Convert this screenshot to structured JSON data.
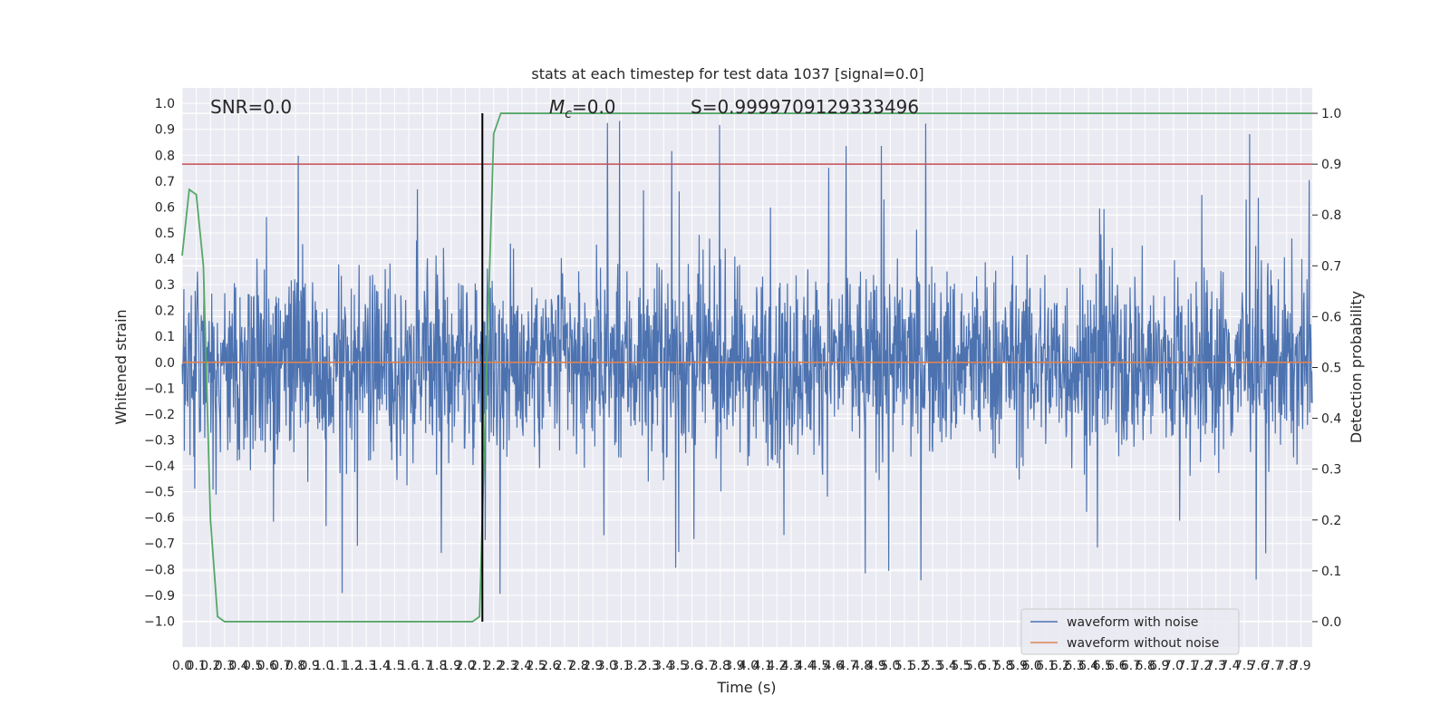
{
  "chart_data": {
    "type": "line",
    "title": "stats at each timestep for test data 1037 [signal=0.0]",
    "xlabel": "Time (s)",
    "ylabel_left": "Whitened strain",
    "ylabel_right": "Detection probability",
    "xlim": [
      0.0,
      7.98
    ],
    "ylim_left": [
      -1.1,
      1.06
    ],
    "ylim_right": [
      -0.05,
      1.05
    ],
    "x_ticks": [
      "0.0",
      "0.1",
      "0.2",
      "0.3",
      "0.4",
      "0.5",
      "0.6",
      "0.7",
      "0.8",
      "0.9",
      "1.0",
      "1.1",
      "1.2",
      "1.3",
      "1.4",
      "1.5",
      "1.6",
      "1.7",
      "1.8",
      "1.9",
      "2.0",
      "2.1",
      "2.2",
      "2.3",
      "2.4",
      "2.5",
      "2.6",
      "2.7",
      "2.8",
      "2.9",
      "3.0",
      "3.1",
      "3.2",
      "3.3",
      "3.4",
      "3.5",
      "3.6",
      "3.7",
      "3.8",
      "3.9",
      "4.0",
      "4.1",
      "4.2",
      "4.3",
      "4.4",
      "4.5",
      "4.6",
      "4.7",
      "4.8",
      "4.9",
      "5.0",
      "5.1",
      "5.2",
      "5.3",
      "5.4",
      "5.5",
      "5.6",
      "5.7",
      "5.8",
      "5.9",
      "6.0",
      "6.1",
      "6.2",
      "6.3",
      "6.4",
      "6.5",
      "6.6",
      "6.7",
      "6.8",
      "6.9",
      "7.0",
      "7.1",
      "7.2",
      "7.3",
      "7.4",
      "7.5",
      "7.6",
      "7.7",
      "7.8",
      "7.9"
    ],
    "y_ticks_left": [
      "−1.0",
      "−0.9",
      "−0.8",
      "−0.7",
      "−0.6",
      "−0.5",
      "−0.4",
      "−0.3",
      "−0.2",
      "−0.1",
      "0.0",
      "0.1",
      "0.2",
      "0.3",
      "0.4",
      "0.5",
      "0.6",
      "0.7",
      "0.8",
      "0.9",
      "1.0"
    ],
    "y_ticks_right": [
      "0.0",
      "0.1",
      "0.2",
      "0.3",
      "0.4",
      "0.5",
      "0.6",
      "0.7",
      "0.8",
      "0.9",
      "1.0"
    ],
    "grid": true,
    "legend_position": "lower-right",
    "annotations": {
      "snr": "SNR=0.0",
      "mc": "=0.0",
      "mc_symbol": "M",
      "mc_subscript": "c",
      "s": "S=0.9999709129333496"
    },
    "series": [
      {
        "name": "waveform with noise",
        "color": "#4c72b0",
        "axis": "left",
        "description": "dense noisy strain, amplitude envelope ~±0.4 with spikes to ±0.95",
        "envelope_typical": 0.4,
        "envelope_peak": 0.95
      },
      {
        "name": "waveform without noise",
        "color": "#dd8452",
        "axis": "left",
        "x": [
          0.0,
          7.98
        ],
        "y": [
          0.0,
          0.0
        ]
      },
      {
        "name": "",
        "color": "#55a868",
        "axis": "right",
        "x": [
          0.0,
          0.05,
          0.1,
          0.15,
          0.2,
          0.25,
          0.3,
          2.05,
          2.1,
          2.15,
          2.2,
          2.25,
          2.3,
          7.98
        ],
        "y": [
          0.72,
          0.85,
          0.84,
          0.7,
          0.2,
          0.01,
          0.0,
          0.0,
          0.01,
          0.5,
          0.96,
          1.0,
          1.0,
          1.0
        ]
      }
    ],
    "threshold": {
      "color": "#c44e52",
      "axis": "right",
      "value": 0.9
    },
    "marker_line": {
      "color": "#000000",
      "x": 2.12,
      "y_from": 0.0,
      "y_to": 1.0
    }
  }
}
